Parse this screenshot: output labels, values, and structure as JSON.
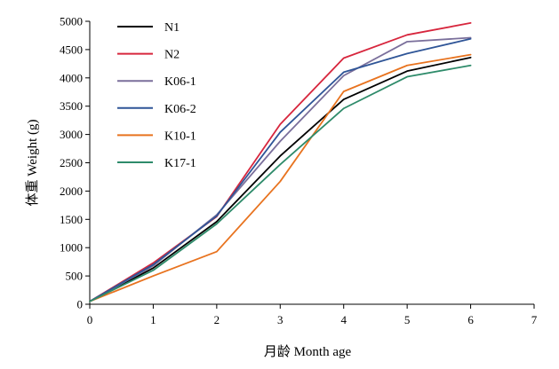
{
  "chart_data": {
    "type": "line",
    "xlabel": "月龄 Month age",
    "ylabel": "体重 Weight (g)",
    "xlim": [
      0,
      7
    ],
    "ylim": [
      0,
      5000
    ],
    "x_ticks": [
      0,
      1,
      2,
      3,
      4,
      5,
      6,
      7
    ],
    "y_ticks": [
      0,
      500,
      1000,
      1500,
      2000,
      2500,
      3000,
      3500,
      4000,
      4500,
      5000
    ],
    "grid": false,
    "legend_position": "top-left",
    "x": [
      0,
      1,
      2,
      3,
      4,
      5,
      6
    ],
    "series": [
      {
        "name": "N1",
        "color": "#000000",
        "values": [
          50,
          640,
          1460,
          2620,
          3620,
          4120,
          4360
        ]
      },
      {
        "name": "N2",
        "color": "#d7263d",
        "values": [
          50,
          730,
          1550,
          3180,
          4350,
          4760,
          4970
        ]
      },
      {
        "name": "K06-1",
        "color": "#7a6f9b",
        "values": [
          50,
          680,
          1580,
          2880,
          4040,
          4640,
          4710
        ]
      },
      {
        "name": "K06-2",
        "color": "#2f5597",
        "values": [
          50,
          700,
          1560,
          3040,
          4100,
          4430,
          4690
        ]
      },
      {
        "name": "K10-1",
        "color": "#e8731f",
        "values": [
          50,
          500,
          930,
          2170,
          3760,
          4220,
          4410
        ]
      },
      {
        "name": "K17-1",
        "color": "#2e8b6a",
        "values": [
          50,
          600,
          1420,
          2470,
          3460,
          4020,
          4220
        ]
      }
    ]
  }
}
